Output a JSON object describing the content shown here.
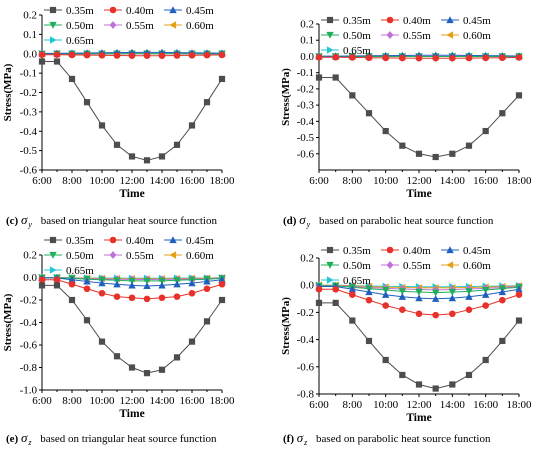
{
  "chart_data": [
    {
      "type": "line",
      "panel": "c",
      "caption_letter": "(c)",
      "caption_symbol": "σ",
      "caption_subscript": "y",
      "caption_text": "based on triangular heat source function",
      "xlabel": "Time",
      "ylabel": "Stress(MPa)",
      "categories": [
        "6:00",
        "7:00",
        "8:00",
        "9:00",
        "10:00",
        "11:00",
        "12:00",
        "13:00",
        "14:00",
        "15:00",
        "16:00",
        "17:00",
        "18:00"
      ],
      "xticks": [
        "6:00",
        "8:00",
        "10:00",
        "12:00",
        "14:00",
        "16:00",
        "18:00"
      ],
      "ylim": [
        -0.6,
        0.2
      ],
      "yticks": [
        -0.6,
        -0.5,
        -0.4,
        -0.3,
        -0.2,
        -0.1,
        0.0,
        0.1,
        0.2
      ],
      "ytick_labels": [
        "-0.6",
        "-0.5",
        "-0.4",
        "-0.3",
        "-0.2",
        "-0.1",
        "0.0",
        "0.1",
        "0.2"
      ],
      "series": [
        {
          "name": "0.35m",
          "values": [
            -0.04,
            -0.04,
            -0.13,
            -0.25,
            -0.37,
            -0.47,
            -0.53,
            -0.55,
            -0.53,
            -0.47,
            -0.37,
            -0.25,
            -0.13
          ]
        },
        {
          "name": "0.40m",
          "values": [
            -0.005,
            -0.005,
            -0.006,
            -0.007,
            -0.008,
            -0.009,
            -0.01,
            -0.01,
            -0.01,
            -0.009,
            -0.008,
            -0.007,
            -0.006
          ]
        },
        {
          "name": "0.45m",
          "values": [
            0.002,
            0.002,
            0.003,
            0.004,
            0.005,
            0.006,
            0.007,
            0.007,
            0.007,
            0.006,
            0.005,
            0.004,
            0.003
          ]
        },
        {
          "name": "0.50m",
          "values": [
            0.0,
            0.0,
            0.0,
            0.0,
            0.0,
            0.0,
            0.0,
            0.0,
            0.0,
            0.0,
            0.0,
            0.0,
            0.0
          ]
        },
        {
          "name": "0.55m",
          "values": [
            0.0,
            0.0,
            0.0,
            0.0,
            0.0,
            0.0,
            0.0,
            0.0,
            0.0,
            0.0,
            0.0,
            0.0,
            0.0
          ]
        },
        {
          "name": "0.60m",
          "values": [
            0.0,
            0.0,
            0.0,
            0.0,
            0.0,
            0.0,
            0.0,
            0.0,
            0.0,
            0.0,
            0.0,
            0.0,
            0.0
          ]
        },
        {
          "name": "0.65m",
          "values": [
            0.0,
            0.0,
            0.0,
            0.0,
            0.0,
            0.0,
            0.0,
            0.0,
            0.0,
            0.0,
            0.0,
            0.0,
            0.0
          ]
        }
      ]
    },
    {
      "type": "line",
      "panel": "d",
      "caption_letter": "(d)",
      "caption_symbol": "σ",
      "caption_subscript": "y",
      "caption_text": "based on parabolic heat source function",
      "xlabel": "Time",
      "ylabel": "Stress(MPa)",
      "categories": [
        "6:00",
        "7:00",
        "8:00",
        "9:00",
        "10:00",
        "11:00",
        "12:00",
        "13:00",
        "14:00",
        "15:00",
        "16:00",
        "17:00",
        "18:00"
      ],
      "xticks": [
        "6:00",
        "8:00",
        "10:00",
        "12:00",
        "14:00",
        "16:00",
        "18:00"
      ],
      "ylim": [
        -0.7,
        0.2
      ],
      "yticks": [
        -0.6,
        -0.5,
        -0.4,
        -0.3,
        -0.2,
        -0.1,
        0.0,
        0.1,
        0.2
      ],
      "ytick_labels": [
        "-0.6",
        "-0.5",
        "-0.4",
        "-0.3",
        "-0.2",
        "-0.1",
        "0.0",
        "0.1",
        "0.2"
      ],
      "series": [
        {
          "name": "0.35m",
          "values": [
            -0.13,
            -0.13,
            -0.24,
            -0.35,
            -0.46,
            -0.55,
            -0.6,
            -0.62,
            -0.6,
            -0.55,
            -0.46,
            -0.35,
            -0.24
          ]
        },
        {
          "name": "0.40m",
          "values": [
            -0.005,
            -0.005,
            -0.006,
            -0.008,
            -0.009,
            -0.01,
            -0.011,
            -0.011,
            -0.011,
            -0.01,
            -0.009,
            -0.008,
            -0.006
          ]
        },
        {
          "name": "0.45m",
          "values": [
            0.002,
            0.002,
            0.003,
            0.004,
            0.005,
            0.006,
            0.007,
            0.007,
            0.007,
            0.006,
            0.005,
            0.004,
            0.003
          ]
        },
        {
          "name": "0.50m",
          "values": [
            0.0,
            0.0,
            0.0,
            0.0,
            0.0,
            0.0,
            0.0,
            0.0,
            0.0,
            0.0,
            0.0,
            0.0,
            0.0
          ]
        },
        {
          "name": "0.55m",
          "values": [
            0.0,
            0.0,
            0.0,
            0.0,
            0.0,
            0.0,
            0.0,
            0.0,
            0.0,
            0.0,
            0.0,
            0.0,
            0.0
          ]
        },
        {
          "name": "0.60m",
          "values": [
            0.0,
            0.0,
            0.0,
            0.0,
            0.0,
            0.0,
            0.0,
            0.0,
            0.0,
            0.0,
            0.0,
            0.0,
            0.0
          ]
        },
        {
          "name": "0.65m",
          "values": [
            0.0,
            0.0,
            0.0,
            0.0,
            0.0,
            0.0,
            0.0,
            0.0,
            0.0,
            0.0,
            0.0,
            0.0,
            0.0
          ]
        }
      ]
    },
    {
      "type": "line",
      "panel": "e",
      "caption_letter": "(e)",
      "caption_symbol": "σ",
      "caption_subscript": "z",
      "caption_text": "based on triangular heat source function",
      "xlabel": "Time",
      "ylabel": "Stress(MPa)",
      "categories": [
        "6:00",
        "7:00",
        "8:00",
        "9:00",
        "10:00",
        "11:00",
        "12:00",
        "13:00",
        "14:00",
        "15:00",
        "16:00",
        "17:00",
        "18:00"
      ],
      "xticks": [
        "6:00",
        "8:00",
        "10:00",
        "12:00",
        "14:00",
        "16:00",
        "18:00"
      ],
      "ylim": [
        -1.0,
        0.2
      ],
      "yticks": [
        -1.0,
        -0.8,
        -0.6,
        -0.4,
        -0.2,
        0.0,
        0.2
      ],
      "ytick_labels": [
        "-1.0",
        "-0.8",
        "-0.6",
        "-0.4",
        "-0.2",
        "0.0",
        "0.2"
      ],
      "series": [
        {
          "name": "0.35m",
          "values": [
            -0.07,
            -0.07,
            -0.2,
            -0.38,
            -0.57,
            -0.7,
            -0.8,
            -0.85,
            -0.82,
            -0.71,
            -0.57,
            -0.39,
            -0.2
          ]
        },
        {
          "name": "0.40m",
          "values": [
            -0.02,
            -0.02,
            -0.06,
            -0.1,
            -0.14,
            -0.17,
            -0.18,
            -0.19,
            -0.18,
            -0.17,
            -0.14,
            -0.1,
            -0.06
          ]
        },
        {
          "name": "0.45m",
          "values": [
            -0.005,
            -0.005,
            -0.02,
            -0.035,
            -0.05,
            -0.06,
            -0.07,
            -0.075,
            -0.07,
            -0.06,
            -0.05,
            -0.035,
            -0.02
          ]
        },
        {
          "name": "0.50m",
          "values": [
            -0.002,
            -0.002,
            -0.008,
            -0.015,
            -0.02,
            -0.025,
            -0.03,
            -0.03,
            -0.03,
            -0.025,
            -0.02,
            -0.015,
            -0.008
          ]
        },
        {
          "name": "0.55m",
          "values": [
            -0.001,
            -0.001,
            -0.005,
            -0.01,
            -0.012,
            -0.015,
            -0.017,
            -0.018,
            -0.017,
            -0.015,
            -0.012,
            -0.01,
            -0.005
          ]
        },
        {
          "name": "0.60m",
          "values": [
            0.0,
            0.0,
            -0.003,
            -0.006,
            -0.008,
            -0.01,
            -0.011,
            -0.012,
            -0.011,
            -0.01,
            -0.008,
            -0.006,
            -0.003
          ]
        },
        {
          "name": "0.65m",
          "values": [
            0.0,
            0.0,
            -0.002,
            -0.004,
            -0.005,
            -0.006,
            -0.007,
            -0.007,
            -0.007,
            -0.006,
            -0.005,
            -0.004,
            -0.002
          ]
        }
      ]
    },
    {
      "type": "line",
      "panel": "f",
      "caption_letter": "(f)",
      "caption_symbol": "σ",
      "caption_subscript": "z",
      "caption_text": "based on parabolic heat source function",
      "xlabel": "Time",
      "ylabel": "Stress(MPa)",
      "categories": [
        "6:00",
        "7:00",
        "8:00",
        "9:00",
        "10:00",
        "11:00",
        "12:00",
        "13:00",
        "14:00",
        "15:00",
        "16:00",
        "17:00",
        "18:00"
      ],
      "xticks": [
        "6:00",
        "8:00",
        "10:00",
        "12:00",
        "14:00",
        "16:00",
        "18:00"
      ],
      "ylim": [
        -0.8,
        0.2
      ],
      "yticks": [
        -0.8,
        -0.6,
        -0.4,
        -0.2,
        0.0,
        0.2
      ],
      "ytick_labels": [
        "-0.8",
        "-0.6",
        "-0.4",
        "-0.2",
        "0.0",
        "0.2"
      ],
      "series": [
        {
          "name": "0.35m",
          "values": [
            -0.13,
            -0.13,
            -0.26,
            -0.41,
            -0.55,
            -0.66,
            -0.73,
            -0.76,
            -0.73,
            -0.66,
            -0.55,
            -0.41,
            -0.26
          ]
        },
        {
          "name": "0.40m",
          "values": [
            -0.03,
            -0.03,
            -0.07,
            -0.11,
            -0.15,
            -0.18,
            -0.21,
            -0.22,
            -0.21,
            -0.18,
            -0.15,
            -0.11,
            -0.07
          ]
        },
        {
          "name": "0.45m",
          "values": [
            -0.01,
            -0.01,
            -0.03,
            -0.05,
            -0.07,
            -0.085,
            -0.095,
            -0.1,
            -0.095,
            -0.085,
            -0.07,
            -0.05,
            -0.03
          ]
        },
        {
          "name": "0.50m",
          "values": [
            -0.005,
            -0.005,
            -0.015,
            -0.025,
            -0.035,
            -0.045,
            -0.05,
            -0.055,
            -0.05,
            -0.045,
            -0.035,
            -0.025,
            -0.015
          ]
        },
        {
          "name": "0.55m",
          "values": [
            -0.002,
            -0.002,
            -0.01,
            -0.017,
            -0.023,
            -0.028,
            -0.032,
            -0.034,
            -0.032,
            -0.028,
            -0.023,
            -0.017,
            -0.01
          ]
        },
        {
          "name": "0.60m",
          "values": [
            0.0,
            0.0,
            -0.005,
            -0.01,
            -0.014,
            -0.017,
            -0.019,
            -0.02,
            -0.019,
            -0.017,
            -0.014,
            -0.01,
            -0.005
          ]
        },
        {
          "name": "0.65m",
          "values": [
            0.0,
            0.0,
            -0.003,
            -0.006,
            -0.008,
            -0.01,
            -0.011,
            -0.012,
            -0.011,
            -0.01,
            -0.008,
            -0.006,
            -0.003
          ]
        }
      ]
    }
  ],
  "series_style": [
    {
      "color": "#4d4d4d",
      "marker": "square"
    },
    {
      "color": "#e8312a",
      "marker": "circle"
    },
    {
      "color": "#1f5fbf",
      "marker": "triangle-up"
    },
    {
      "color": "#1fae5a",
      "marker": "triangle-down"
    },
    {
      "color": "#c06fd8",
      "marker": "diamond"
    },
    {
      "color": "#e3a11a",
      "marker": "triangle-left"
    },
    {
      "color": "#26c6d6",
      "marker": "triangle-right"
    }
  ]
}
